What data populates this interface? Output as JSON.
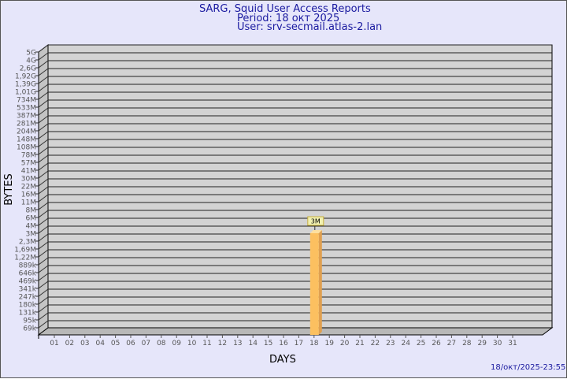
{
  "header": {
    "title": "SARG, Squid User Access Reports",
    "period": "Period: 18 окт 2025",
    "user": "User: srv-secmail.atlas-2.lan"
  },
  "footer": {
    "timestamp": "18/окт/2025-23:55"
  },
  "chart_data": {
    "type": "bar",
    "xlabel": "DAYS",
    "ylabel": "BYTES",
    "y_ticks": [
      "5G",
      "4G",
      "2,6G",
      "1,92G",
      "1,39G",
      "1,01G",
      "734M",
      "533M",
      "387M",
      "281M",
      "204M",
      "148M",
      "108M",
      "78M",
      "57M",
      "41M",
      "30M",
      "22M",
      "16M",
      "11M",
      "8M",
      "6M",
      "4M",
      "3M",
      "2,3M",
      "1,69M",
      "1,22M",
      "889k",
      "646k",
      "469k",
      "341k",
      "247k",
      "180k",
      "131k",
      "95k",
      "69k"
    ],
    "y_scale": "log",
    "categories": [
      "01",
      "02",
      "03",
      "04",
      "05",
      "06",
      "07",
      "08",
      "09",
      "10",
      "11",
      "12",
      "13",
      "14",
      "15",
      "16",
      "17",
      "18",
      "19",
      "20",
      "21",
      "22",
      "23",
      "24",
      "25",
      "26",
      "27",
      "28",
      "29",
      "30",
      "31"
    ],
    "values": [
      {
        "day": "18",
        "value": "3M",
        "label": "3M"
      }
    ],
    "grid": true,
    "colors": {
      "bar": "#fcc060",
      "bar_side": "#e0a050",
      "wall": "#d3d3d3",
      "background": "#e6e6fa",
      "title": "#1a1aa0"
    }
  }
}
